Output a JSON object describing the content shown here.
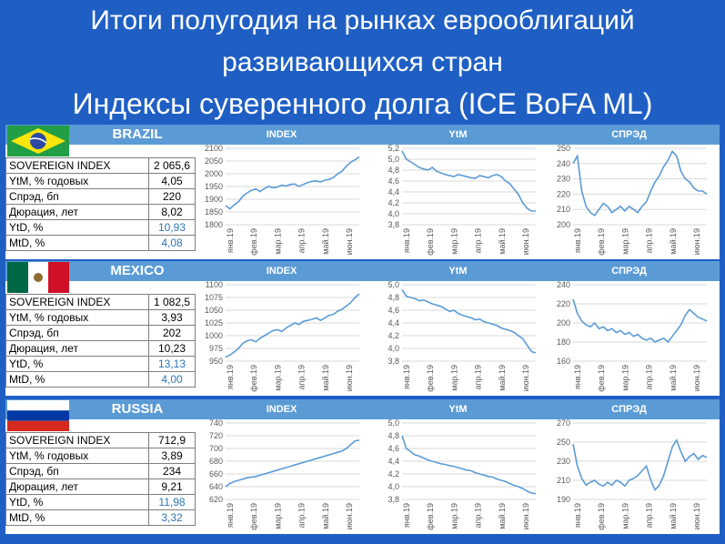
{
  "title": {
    "line1": "Итоги полугодия на рынках еврооблигаций",
    "line2": "развивающихся стран",
    "line3": "Индексы суверенного долга (ICE BoFA ML)"
  },
  "column_titles": [
    "INDEX",
    "YtM",
    "СПРЭД"
  ],
  "months": [
    "янв.19",
    "фев.19",
    "мар.19",
    "апр.19",
    "май.19",
    "июн.19"
  ],
  "colors": {
    "header": "#5b9bd5",
    "line": "#5b9bd5",
    "background": "#1f5fc4",
    "blue_value": "#2e75b6"
  },
  "countries": [
    {
      "name": "BRAZIL",
      "flag": "brazil-flag",
      "stats": [
        {
          "label": "SOVEREIGN INDEX",
          "value": "2 065,6",
          "blue": false
        },
        {
          "label": "YtM, % годовых",
          "value": "4,05",
          "blue": false
        },
        {
          "label": "Спрэд, бп",
          "value": "220",
          "blue": false
        },
        {
          "label": "Дюрация, лет",
          "value": "8,02",
          "blue": false
        },
        {
          "label": "YtD, %",
          "value": "10,93",
          "blue": true
        },
        {
          "label": "MtD, %",
          "value": "4,08",
          "blue": true
        }
      ]
    },
    {
      "name": "MEXICO",
      "flag": "mexico-flag",
      "stats": [
        {
          "label": "SOVEREIGN INDEX",
          "value": "1 082,5",
          "blue": false
        },
        {
          "label": "YtM, % годовых",
          "value": "3,93",
          "blue": false
        },
        {
          "label": "Спрэд, бп",
          "value": "202",
          "blue": false
        },
        {
          "label": "Дюрация, лет",
          "value": "10,23",
          "blue": false
        },
        {
          "label": "YtD, %",
          "value": "13,13",
          "blue": true
        },
        {
          "label": "MtD, %",
          "value": "4,00",
          "blue": true
        }
      ]
    },
    {
      "name": "RUSSIA",
      "flag": "russia-flag",
      "stats": [
        {
          "label": "SOVEREIGN INDEX",
          "value": "712,9",
          "blue": false
        },
        {
          "label": "YtM, % годовых",
          "value": "3,89",
          "blue": false
        },
        {
          "label": "Спрэд, бп",
          "value": "234",
          "blue": false
        },
        {
          "label": "Дюрация, лет",
          "value": "9,21",
          "blue": false
        },
        {
          "label": "YtD, %",
          "value": "11,98",
          "blue": true
        },
        {
          "label": "MtD, %",
          "value": "3,32",
          "blue": true
        }
      ]
    }
  ],
  "chart_data": [
    {
      "type": "line",
      "country": "BRAZIL",
      "title": "INDEX",
      "yticks": [
        "1800",
        "1850",
        "1900",
        "1950",
        "2000",
        "2050",
        "2100"
      ],
      "ylim": [
        1800,
        2100
      ],
      "x": [
        "янв.19",
        "фев.19",
        "мар.19",
        "апр.19",
        "май.19",
        "июн.19"
      ],
      "points": [
        1875,
        1862,
        1878,
        1890,
        1912,
        1925,
        1935,
        1940,
        1930,
        1942,
        1950,
        1945,
        1948,
        1955,
        1952,
        1958,
        1960,
        1950,
        1958,
        1965,
        1970,
        1972,
        1968,
        1975,
        1978,
        1985,
        2000,
        2010,
        2030,
        2045,
        2055,
        2066
      ],
      "grid": true
    },
    {
      "type": "line",
      "country": "BRAZIL",
      "title": "YtM",
      "yticks": [
        "3,8",
        "4,0",
        "4,2",
        "4,4",
        "4,6",
        "4,8",
        "5,0",
        "5,2"
      ],
      "ylim": [
        3.8,
        5.2
      ],
      "x": [
        "янв.19",
        "фев.19",
        "мар.19",
        "апр.19",
        "май.19",
        "июн.19"
      ],
      "points": [
        5.15,
        5.0,
        4.95,
        4.9,
        4.85,
        4.82,
        4.8,
        4.85,
        4.78,
        4.75,
        4.72,
        4.7,
        4.68,
        4.72,
        4.7,
        4.68,
        4.66,
        4.65,
        4.7,
        4.68,
        4.66,
        4.7,
        4.72,
        4.68,
        4.6,
        4.55,
        4.45,
        4.35,
        4.2,
        4.1,
        4.05,
        4.05
      ],
      "grid": true
    },
    {
      "type": "line",
      "country": "BRAZIL",
      "title": "СПРЭД",
      "yticks": [
        "200",
        "210",
        "220",
        "230",
        "240",
        "250"
      ],
      "ylim": [
        200,
        250
      ],
      "x": [
        "янв.19",
        "фев.19",
        "мар.19",
        "апр.19",
        "май.19",
        "июн.19"
      ],
      "points": [
        240,
        245,
        222,
        212,
        208,
        206,
        210,
        214,
        212,
        208,
        210,
        212,
        209,
        212,
        210,
        208,
        212,
        215,
        222,
        228,
        232,
        238,
        242,
        248,
        245,
        235,
        230,
        228,
        224,
        222,
        222,
        220
      ],
      "grid": true
    },
    {
      "type": "line",
      "country": "MEXICO",
      "title": "INDEX",
      "yticks": [
        "950",
        "975",
        "1000",
        "1025",
        "1050",
        "1075",
        "1100"
      ],
      "ylim": [
        950,
        1100
      ],
      "x": [
        "янв.19",
        "фев.19",
        "мар.19",
        "апр.19",
        "май.19",
        "июн.19"
      ],
      "points": [
        958,
        962,
        968,
        975,
        985,
        990,
        992,
        988,
        995,
        1000,
        1005,
        1010,
        1012,
        1008,
        1015,
        1020,
        1025,
        1022,
        1028,
        1030,
        1032,
        1035,
        1030,
        1035,
        1040,
        1042,
        1048,
        1052,
        1058,
        1065,
        1075,
        1082
      ],
      "grid": true
    },
    {
      "type": "line",
      "country": "MEXICO",
      "title": "YtM",
      "yticks": [
        "3,8",
        "4,0",
        "4,2",
        "4,4",
        "4,6",
        "4,8",
        "5,0"
      ],
      "ylim": [
        3.8,
        5.0
      ],
      "x": [
        "янв.19",
        "фев.19",
        "мар.19",
        "апр.19",
        "май.19",
        "июн.19"
      ],
      "points": [
        4.92,
        4.82,
        4.8,
        4.78,
        4.75,
        4.76,
        4.73,
        4.7,
        4.68,
        4.66,
        4.62,
        4.58,
        4.6,
        4.55,
        4.52,
        4.5,
        4.48,
        4.45,
        4.46,
        4.42,
        4.4,
        4.38,
        4.36,
        4.32,
        4.3,
        4.28,
        4.25,
        4.2,
        4.15,
        4.05,
        3.95,
        3.93
      ],
      "grid": true
    },
    {
      "type": "line",
      "country": "MEXICO",
      "title": "СПРЭД",
      "yticks": [
        "160",
        "180",
        "200",
        "220",
        "240"
      ],
      "ylim": [
        160,
        240
      ],
      "x": [
        "янв.19",
        "фев.19",
        "мар.19",
        "апр.19",
        "май.19",
        "июн.19"
      ],
      "points": [
        225,
        210,
        202,
        198,
        196,
        200,
        194,
        196,
        192,
        194,
        190,
        192,
        188,
        190,
        186,
        188,
        184,
        182,
        184,
        180,
        182,
        184,
        180,
        186,
        192,
        198,
        208,
        214,
        210,
        206,
        204,
        202
      ],
      "grid": true
    },
    {
      "type": "line",
      "country": "RUSSIA",
      "title": "INDEX",
      "yticks": [
        "620",
        "640",
        "660",
        "680",
        "700",
        "720",
        "740"
      ],
      "ylim": [
        620,
        740
      ],
      "x": [
        "янв.19",
        "фев.19",
        "мар.19",
        "апр.19",
        "май.19",
        "июн.19"
      ],
      "points": [
        640,
        645,
        648,
        650,
        652,
        654,
        655,
        656,
        658,
        660,
        662,
        664,
        666,
        668,
        670,
        672,
        674,
        676,
        678,
        680,
        682,
        684,
        686,
        688,
        690,
        692,
        694,
        696,
        700,
        706,
        712,
        713
      ],
      "grid": true
    },
    {
      "type": "line",
      "country": "RUSSIA",
      "title": "YtM",
      "yticks": [
        "3,8",
        "4,0",
        "4,2",
        "4,4",
        "4,6",
        "4,8",
        "5,0"
      ],
      "ylim": [
        3.8,
        5.0
      ],
      "x": [
        "янв.19",
        "фев.19",
        "мар.19",
        "апр.19",
        "май.19",
        "июн.19"
      ],
      "points": [
        4.8,
        4.6,
        4.55,
        4.5,
        4.48,
        4.45,
        4.42,
        4.4,
        4.38,
        4.36,
        4.35,
        4.33,
        4.32,
        4.3,
        4.28,
        4.26,
        4.25,
        4.22,
        4.2,
        4.18,
        4.16,
        4.15,
        4.12,
        4.1,
        4.08,
        4.05,
        4.02,
        4.0,
        3.97,
        3.93,
        3.9,
        3.89
      ],
      "grid": true
    },
    {
      "type": "line",
      "country": "RUSSIA",
      "title": "СПРЭД",
      "yticks": [
        "190",
        "210",
        "230",
        "250",
        "270"
      ],
      "ylim": [
        190,
        270
      ],
      "x": [
        "янв.19",
        "фев.19",
        "мар.19",
        "апр.19",
        "май.19",
        "июн.19"
      ],
      "points": [
        248,
        225,
        212,
        205,
        208,
        210,
        206,
        204,
        208,
        205,
        210,
        208,
        204,
        210,
        212,
        215,
        220,
        225,
        210,
        200,
        205,
        215,
        230,
        245,
        252,
        240,
        230,
        235,
        238,
        232,
        236,
        234
      ],
      "grid": true
    }
  ]
}
